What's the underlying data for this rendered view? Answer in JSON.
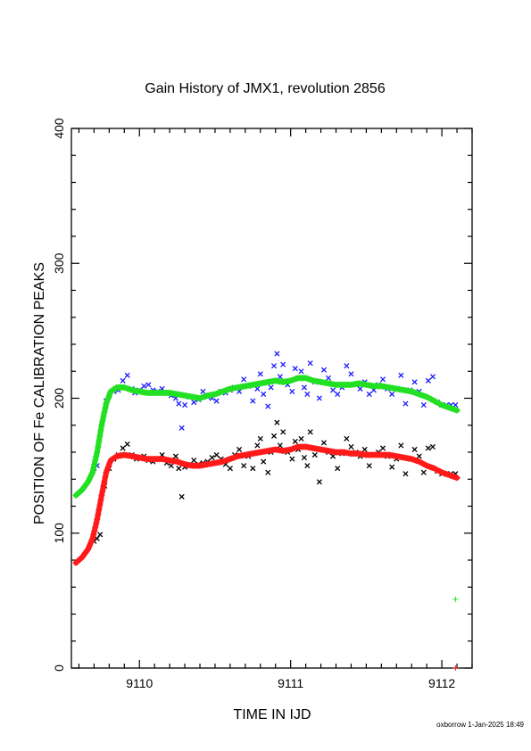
{
  "chart_data": {
    "type": "scatter",
    "title": "Gain History of JMX1, revolution 2856",
    "xlabel": "TIME IN IJD",
    "ylabel": "POSITION OF Fe CALIBRATION PEAKS",
    "xlim": [
      9109.55,
      9112.2
    ],
    "ylim": [
      0,
      400
    ],
    "xticks": [
      9110,
      9111,
      9112
    ],
    "yticks": [
      0,
      100,
      200,
      300,
      400
    ],
    "grid": false,
    "colors": {
      "upper_points": "#1a1aff",
      "upper_fit": "#22e022",
      "lower_points": "#000000",
      "lower_fit": "#ff1a1a",
      "axis": "#000000"
    },
    "series": [
      {
        "role": "upper_points",
        "marker": "x",
        "x": [
          9109.7,
          9109.72,
          9109.76,
          9109.78,
          9109.8,
          9109.83,
          9109.86,
          9109.89,
          9109.92,
          9109.95,
          9109.97,
          9110.0,
          9110.03,
          9110.06,
          9110.09,
          9110.12,
          9110.15,
          9110.18,
          9110.21,
          9110.24,
          9110.26,
          9110.28,
          9110.3,
          9110.33,
          9110.36,
          9110.39,
          9110.42,
          9110.45,
          9110.48,
          9110.51,
          9110.54,
          9110.57,
          9110.6,
          9110.63,
          9110.66,
          9110.69,
          9110.72,
          9110.75,
          9110.78,
          9110.8,
          9110.82,
          9110.85,
          9110.87,
          9110.89,
          9110.91,
          9110.93,
          9110.95,
          9110.98,
          9111.01,
          9111.03,
          9111.05,
          9111.07,
          9111.09,
          9111.11,
          9111.13,
          9111.16,
          9111.19,
          9111.22,
          9111.25,
          9111.28,
          9111.31,
          9111.34,
          9111.37,
          9111.4,
          9111.43,
          9111.46,
          9111.49,
          9111.52,
          9111.55,
          9111.58,
          9111.61,
          9111.64,
          9111.67,
          9111.7,
          9111.73,
          9111.76,
          9111.79,
          9111.82,
          9111.85,
          9111.88,
          9111.91,
          9111.94,
          9111.97,
          9112.0,
          9112.03,
          9112.06,
          9112.09
        ],
        "y": [
          148,
          150,
          185,
          198,
          202,
          205,
          206,
          213,
          217,
          207,
          204,
          206,
          209,
          210,
          206,
          205,
          207,
          204,
          202,
          200,
          196,
          178,
          195,
          201,
          197,
          199,
          205,
          201,
          200,
          198,
          205,
          204,
          206,
          208,
          205,
          214,
          209,
          198,
          207,
          218,
          203,
          194,
          208,
          224,
          233,
          216,
          225,
          210,
          205,
          222,
          215,
          220,
          208,
          203,
          226,
          212,
          200,
          221,
          215,
          206,
          203,
          208,
          224,
          218,
          210,
          207,
          212,
          203,
          206,
          210,
          214,
          207,
          203,
          207,
          217,
          196,
          206,
          212,
          205,
          195,
          213,
          216,
          197,
          195,
          195,
          195,
          195
        ]
      },
      {
        "role": "upper_fit",
        "marker": "+",
        "x": [
          9109.58,
          9109.62,
          9109.66,
          9109.69,
          9109.72,
          9109.75,
          9109.78,
          9109.81,
          9109.85,
          9109.9,
          9109.95,
          9110.0,
          9110.05,
          9110.1,
          9110.15,
          9110.2,
          9110.25,
          9110.3,
          9110.35,
          9110.4,
          9110.45,
          9110.5,
          9110.55,
          9110.6,
          9110.65,
          9110.7,
          9110.75,
          9110.8,
          9110.85,
          9110.9,
          9110.95,
          9111.0,
          9111.05,
          9111.1,
          9111.15,
          9111.2,
          9111.25,
          9111.3,
          9111.35,
          9111.4,
          9111.45,
          9111.5,
          9111.55,
          9111.6,
          9111.65,
          9111.7,
          9111.75,
          9111.8,
          9111.85,
          9111.9,
          9111.95,
          9112.0,
          9112.05,
          9112.1
        ],
        "y": [
          128,
          132,
          138,
          145,
          160,
          180,
          196,
          205,
          208,
          208,
          206,
          205,
          204,
          204,
          204,
          204,
          203,
          202,
          201,
          200,
          202,
          203,
          205,
          207,
          208,
          209,
          210,
          211,
          212,
          213,
          212,
          213,
          215,
          215,
          213,
          212,
          211,
          210,
          210,
          210,
          211,
          210,
          209,
          209,
          208,
          207,
          206,
          205,
          203,
          201,
          198,
          195,
          193,
          191
        ]
      },
      {
        "role": "lower_points",
        "marker": "x",
        "x": [
          9109.7,
          9109.72,
          9109.74,
          9109.77,
          9109.8,
          9109.83,
          9109.86,
          9109.89,
          9109.92,
          9109.95,
          9109.98,
          9110.0,
          9110.03,
          9110.06,
          9110.09,
          9110.12,
          9110.15,
          9110.18,
          9110.21,
          9110.24,
          9110.26,
          9110.28,
          9110.3,
          9110.33,
          9110.36,
          9110.39,
          9110.42,
          9110.45,
          9110.48,
          9110.51,
          9110.54,
          9110.57,
          9110.6,
          9110.63,
          9110.66,
          9110.69,
          9110.72,
          9110.75,
          9110.78,
          9110.8,
          9110.82,
          9110.85,
          9110.87,
          9110.89,
          9110.91,
          9110.93,
          9110.95,
          9110.98,
          9111.01,
          9111.03,
          9111.05,
          9111.07,
          9111.09,
          9111.11,
          9111.13,
          9111.16,
          9111.19,
          9111.22,
          9111.25,
          9111.28,
          9111.31,
          9111.34,
          9111.37,
          9111.4,
          9111.43,
          9111.46,
          9111.49,
          9111.52,
          9111.55,
          9111.58,
          9111.61,
          9111.64,
          9111.67,
          9111.7,
          9111.73,
          9111.76,
          9111.79,
          9111.82,
          9111.85,
          9111.88,
          9111.91,
          9111.94,
          9111.97,
          9112.0,
          9112.03,
          9112.06,
          9112.09
        ],
        "y": [
          94,
          96,
          99,
          135,
          148,
          155,
          158,
          163,
          166,
          158,
          155,
          156,
          157,
          154,
          153,
          155,
          158,
          152,
          150,
          157,
          148,
          127,
          149,
          150,
          154,
          151,
          152,
          153,
          156,
          158,
          155,
          151,
          148,
          158,
          162,
          150,
          157,
          148,
          165,
          170,
          153,
          145,
          160,
          172,
          182,
          165,
          175,
          160,
          155,
          168,
          162,
          170,
          156,
          150,
          175,
          158,
          138,
          167,
          160,
          157,
          148,
          159,
          170,
          164,
          160,
          157,
          162,
          150,
          158,
          160,
          163,
          157,
          149,
          155,
          165,
          144,
          155,
          162,
          157,
          145,
          163,
          164,
          146,
          144,
          144,
          144,
          144
        ]
      },
      {
        "role": "lower_fit",
        "marker": "+",
        "x": [
          9109.58,
          9109.62,
          9109.66,
          9109.69,
          9109.72,
          9109.75,
          9109.78,
          9109.81,
          9109.85,
          9109.9,
          9109.95,
          9110.0,
          9110.05,
          9110.1,
          9110.15,
          9110.2,
          9110.25,
          9110.3,
          9110.35,
          9110.4,
          9110.45,
          9110.5,
          9110.55,
          9110.6,
          9110.65,
          9110.7,
          9110.75,
          9110.8,
          9110.85,
          9110.9,
          9110.95,
          9111.0,
          9111.05,
          9111.1,
          9111.15,
          9111.2,
          9111.25,
          9111.3,
          9111.35,
          9111.4,
          9111.45,
          9111.5,
          9111.55,
          9111.6,
          9111.65,
          9111.7,
          9111.75,
          9111.8,
          9111.85,
          9111.9,
          9111.95,
          9112.0,
          9112.05,
          9112.1
        ],
        "y": [
          78,
          82,
          88,
          96,
          110,
          128,
          145,
          154,
          157,
          158,
          157,
          156,
          155,
          155,
          155,
          154,
          153,
          151,
          150,
          150,
          151,
          152,
          153,
          155,
          157,
          158,
          159,
          160,
          161,
          162,
          161,
          162,
          164,
          164,
          163,
          162,
          161,
          160,
          160,
          159,
          159,
          158,
          158,
          158,
          158,
          157,
          156,
          155,
          153,
          150,
          148,
          145,
          143,
          141
        ]
      },
      {
        "role": "outlier",
        "marker": "+",
        "x": [
          9112.09
        ],
        "y": [
          51
        ]
      },
      {
        "role": "outlier_zero",
        "marker": "+",
        "x": [
          9112.09
        ],
        "y": [
          0
        ]
      }
    ]
  },
  "footer": {
    "credit": "oxborrow  1-Jan-2025 18:49"
  }
}
